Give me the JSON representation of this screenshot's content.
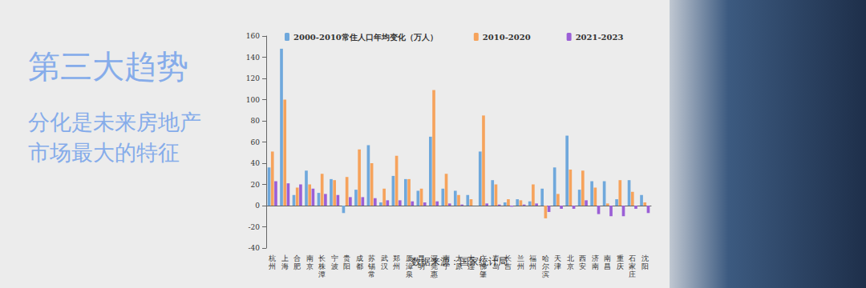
{
  "chart_data": {
    "type": "bar",
    "title": "第三大趋势",
    "subtitle": "分化是未来房地产市场最大的特征",
    "annotations": [
      "数据来源：国家统计局"
    ],
    "categories": [
      "杭州",
      "上海",
      "合肥",
      "南京",
      "长株潭",
      "宁波",
      "贵阳",
      "成都",
      "苏锡常",
      "武汉",
      "郑州",
      "厦漳泉",
      "昆明",
      "深莞惠",
      "南宁",
      "太原",
      "大连",
      "广佛肇",
      "青岛",
      "长吉",
      "兰州",
      "福州",
      "哈尔滨",
      "天津",
      "北京",
      "西安",
      "济南",
      "南昌",
      "重庆",
      "石家庄",
      "沈阳"
    ],
    "series": [
      {
        "name": "2000-2010常住人口年均变化（万人）",
        "color": "#6fa8dc",
        "values": [
          36,
          148,
          10,
          33,
          12,
          25,
          -7,
          15,
          57,
          3,
          28,
          25,
          14,
          65,
          16,
          14,
          10,
          51,
          24,
          3,
          6,
          4,
          16,
          36,
          66,
          15,
          23,
          23,
          6,
          24,
          10
        ]
      },
      {
        "name": "2010-2020",
        "color": "#f6a35c",
        "values": [
          51,
          100,
          17,
          20,
          30,
          24,
          27,
          53,
          40,
          16,
          47,
          25,
          16,
          109,
          30,
          10,
          6,
          85,
          20,
          6,
          5,
          20,
          -12,
          11,
          34,
          33,
          17,
          2,
          24,
          13,
          3
        ]
      },
      {
        "name": "2021-2023",
        "color": "#9b5fd6",
        "values": [
          23,
          21,
          20,
          16,
          11,
          10,
          8,
          8,
          7,
          5,
          5,
          4,
          3,
          4,
          2,
          1,
          0,
          2,
          1,
          -1,
          1,
          2,
          -6,
          -3,
          -3,
          5,
          -8,
          -10,
          -10,
          -3,
          -7
        ]
      }
    ],
    "ylim": [
      -40,
      160
    ],
    "yticks": [
      -40,
      -20,
      0,
      20,
      40,
      60,
      80,
      100,
      120,
      140,
      160
    ],
    "grid": false,
    "legend": "top"
  }
}
